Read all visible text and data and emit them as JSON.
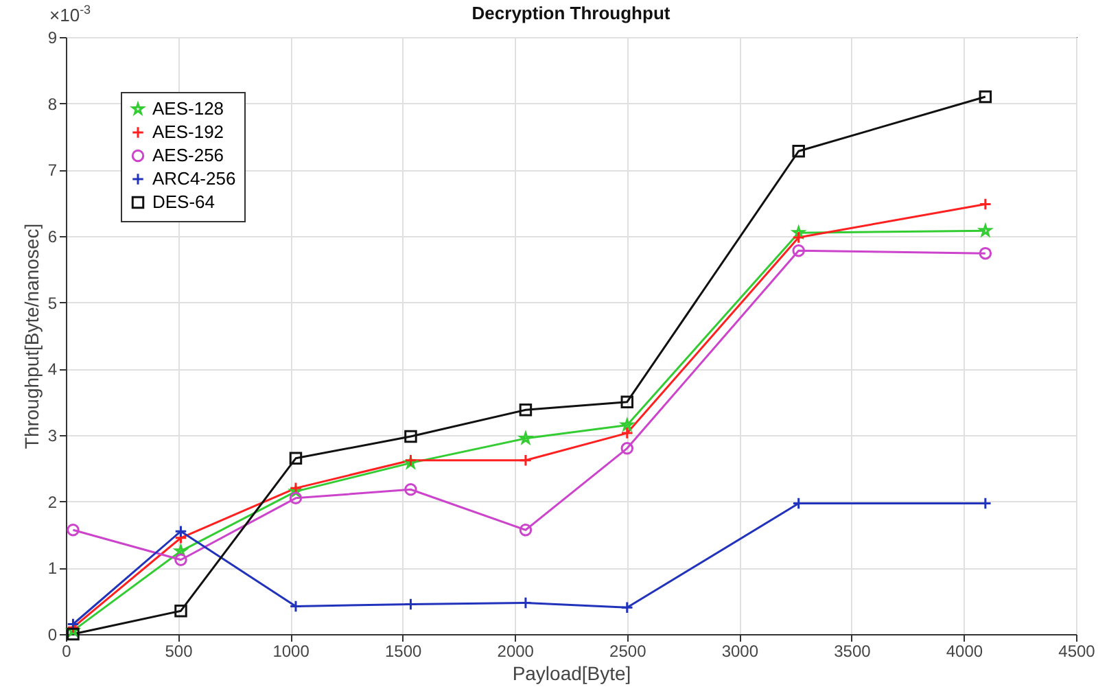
{
  "chart_data": {
    "type": "line",
    "title": "Decryption Throughput",
    "xlabel": "Payload[Byte]",
    "ylabel": "Throughput[Byte/nanosec]",
    "annotations": [
      "×10$^{-3}$"
    ],
    "x": [
      32,
      512,
      1024,
      1536,
      2048,
      2500,
      3264,
      4096
    ],
    "series": [
      {
        "name": "AES-128",
        "color": "#33cc33",
        "marker": "star",
        "values": [
          0.05,
          1.25,
          2.15,
          2.58,
          2.95,
          3.15,
          6.05,
          6.08
        ]
      },
      {
        "name": "AES-192",
        "color": "#ff2020",
        "marker": "cross",
        "values": [
          0.1,
          1.45,
          2.2,
          2.62,
          2.62,
          3.03,
          5.98,
          6.48
        ]
      },
      {
        "name": "AES-256",
        "color": "#cc44cc",
        "marker": "circle",
        "values": [
          1.57,
          1.12,
          2.05,
          2.18,
          1.57,
          2.8,
          5.78,
          5.74
        ]
      },
      {
        "name": "ARC4-256",
        "color": "#2233bb",
        "marker": "cross",
        "values": [
          0.15,
          1.55,
          0.42,
          0.45,
          0.47,
          0.4,
          1.97,
          1.97
        ]
      },
      {
        "name": "DES-64",
        "color": "#111111",
        "marker": "square",
        "values": [
          0.0,
          0.35,
          2.65,
          2.98,
          3.38,
          3.5,
          7.28,
          8.1
        ]
      }
    ],
    "xlim": [
      0,
      4500
    ],
    "xticks": [
      0,
      500,
      1000,
      1500,
      2000,
      2500,
      3000,
      3500,
      4000,
      4500
    ],
    "ylim": [
      0,
      9
    ],
    "yticks": [
      0,
      1,
      2,
      3,
      4,
      5,
      6,
      7,
      8,
      9
    ],
    "grid": true,
    "legend": "top left",
    "line_style": "solid"
  }
}
